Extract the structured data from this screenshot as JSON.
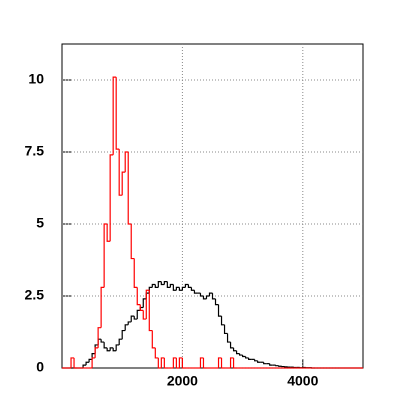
{
  "chart_data": {
    "type": "histogram",
    "bins": [
      0,
      50,
      100,
      150,
      200,
      250,
      300,
      350,
      400,
      450,
      500,
      550,
      600,
      650,
      700,
      750,
      800,
      850,
      900,
      950,
      1000,
      1050,
      1100,
      1150,
      1200,
      1250,
      1300,
      1350,
      1400,
      1450,
      1500,
      1550,
      1600,
      1650,
      1700,
      1750,
      1800,
      1850,
      1900,
      1950,
      2000,
      2050,
      2100,
      2150,
      2200,
      2250,
      2300,
      2350,
      2400,
      2450,
      2500,
      2550,
      2600,
      2650,
      2700,
      2750,
      2800,
      2850,
      2900,
      2950,
      3000,
      3050,
      3100,
      3150,
      3200,
      3250,
      3300,
      3350,
      3400,
      3450,
      3500,
      3550,
      3600,
      3650,
      3700,
      3750,
      3800,
      3850,
      3900,
      3950,
      4000,
      4050,
      4100,
      4150,
      4200,
      4250,
      4300,
      4350,
      4400,
      4450,
      4500,
      4550,
      4600,
      4650,
      4700,
      4750,
      4800,
      4850,
      4900,
      4950,
      5000
    ],
    "series": [
      {
        "color": "#000000",
        "values": [
          0,
          0,
          0,
          0,
          0,
          0,
          0,
          0.1,
          0.2,
          0.3,
          0.5,
          0.8,
          1.0,
          0.9,
          0.7,
          0.6,
          0.7,
          0.6,
          0.8,
          1.0,
          1.3,
          1.5,
          1.6,
          1.8,
          1.7,
          2.0,
          2.1,
          2.4,
          2.6,
          2.8,
          2.9,
          2.8,
          3.0,
          2.9,
          3.0,
          2.8,
          2.9,
          2.7,
          2.8,
          2.7,
          2.8,
          2.9,
          2.8,
          2.7,
          2.6,
          2.6,
          2.5,
          2.4,
          2.5,
          2.6,
          2.4,
          2.2,
          1.8,
          1.5,
          1.2,
          0.9,
          0.7,
          0.6,
          0.5,
          0.45,
          0.4,
          0.35,
          0.3,
          0.3,
          0.25,
          0.2,
          0.2,
          0.15,
          0.15,
          0.1,
          0.1,
          0.08,
          0.06,
          0.05,
          0.04,
          0.03,
          0.03,
          0.02,
          0.02,
          0.01,
          0.02,
          0.01,
          0.01,
          0,
          0,
          0,
          0,
          0,
          0,
          0,
          0,
          0,
          0,
          0,
          0,
          0,
          0,
          0,
          0,
          0
        ]
      },
      {
        "color": "#ff0000",
        "values": [
          0,
          0,
          0,
          0.35,
          0,
          0,
          0,
          0,
          0,
          0,
          0.35,
          0.7,
          1.4,
          2.8,
          5.0,
          4.4,
          7.4,
          10.1,
          7.6,
          6.0,
          6.8,
          7.5,
          5.0,
          3.8,
          2.8,
          2.2,
          2.0,
          1.7,
          2.7,
          1.3,
          0.7,
          0.35,
          0,
          0.35,
          0,
          0,
          0,
          0.35,
          0,
          0.35,
          0,
          0,
          0,
          0,
          0,
          0,
          0.35,
          0,
          0,
          0,
          0,
          0,
          0.35,
          0,
          0,
          0,
          0.35,
          0,
          0,
          0,
          0,
          0,
          0,
          0,
          0,
          0,
          0,
          0,
          0,
          0,
          0,
          0,
          0,
          0,
          0,
          0,
          0,
          0,
          0,
          0,
          0,
          0,
          0,
          0,
          0,
          0,
          0,
          0,
          0,
          0,
          0,
          0,
          0,
          0,
          0,
          0,
          0,
          0,
          0,
          0
        ]
      }
    ],
    "xlim": [
      0,
      5000
    ],
    "ylim": [
      0,
      11.25
    ],
    "xticks": [
      2000,
      4000
    ],
    "yticks": [
      0,
      2.5,
      5,
      7.5,
      10
    ],
    "grid": true
  }
}
